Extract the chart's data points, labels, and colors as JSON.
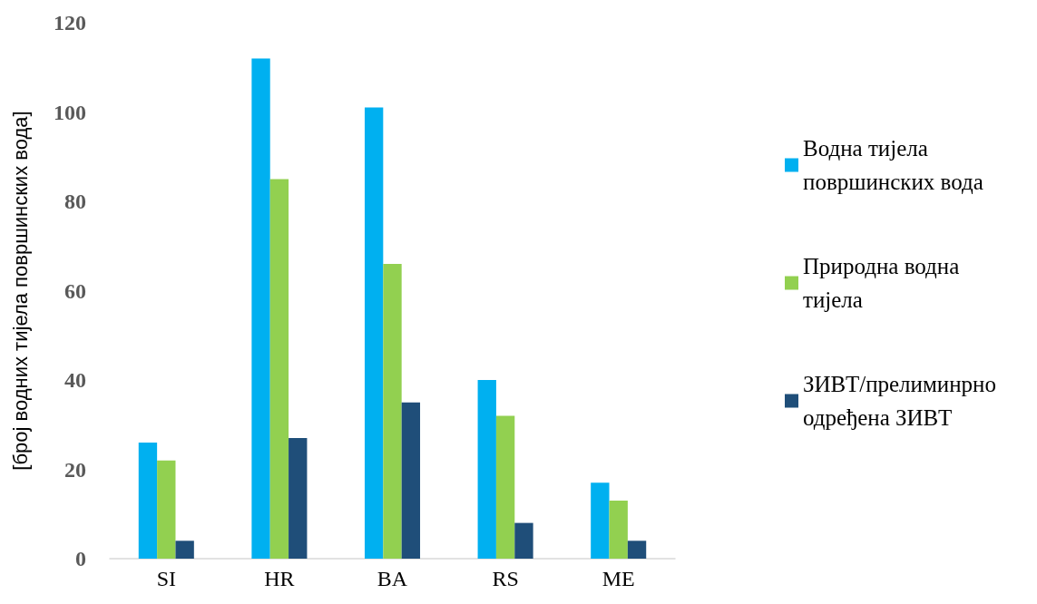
{
  "chart_data": {
    "type": "bar",
    "ylabel": "[број водних тијела површинских вода]",
    "categories": [
      "SI",
      "HR",
      "BA",
      "RS",
      "ME"
    ],
    "series": [
      {
        "name": "Водна тијела површинских вода",
        "color": "#00b0f0",
        "values": [
          26,
          112,
          101,
          40,
          17
        ]
      },
      {
        "name": "Природна водна тијела",
        "color": "#92d050",
        "values": [
          22,
          85,
          66,
          32,
          13
        ]
      },
      {
        "name": "ЗИВТ/прелиминрно одређена ЗИВТ",
        "color": "#1f4e79",
        "values": [
          4,
          27,
          35,
          8,
          4
        ]
      }
    ],
    "ylim": [
      0,
      120
    ],
    "yticks": [
      0,
      20,
      40,
      60,
      80,
      100,
      120
    ],
    "grid": false,
    "legend": "right"
  }
}
